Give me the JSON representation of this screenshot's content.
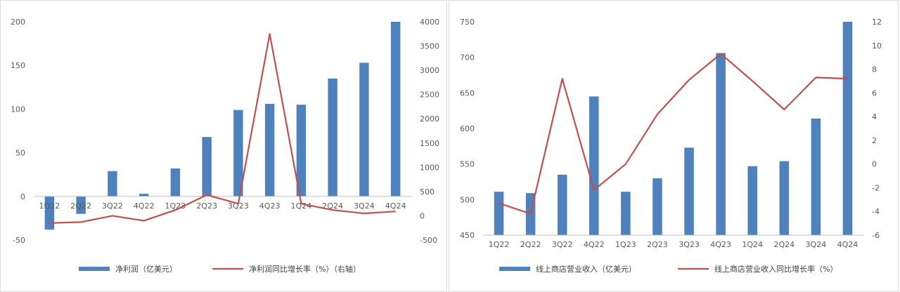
{
  "chart_data": [
    {
      "type": "bar+line",
      "categories": [
        "1Q22",
        "2Q22",
        "3Q22",
        "4Q22",
        "1Q23",
        "2Q23",
        "3Q23",
        "4Q23",
        "1Q24",
        "2Q24",
        "3Q24",
        "4Q24"
      ],
      "series": [
        {
          "name": "净利润（亿美元）",
          "kind": "bar",
          "axis": "left",
          "values": [
            -38,
            -20,
            29,
            3,
            32,
            68,
            99,
            106,
            105,
            135,
            153,
            200
          ]
        },
        {
          "name": "净利润同比增长率（%）（右轴）",
          "kind": "line",
          "axis": "right",
          "values": [
            -150,
            -130,
            0,
            -100,
            120,
            430,
            250,
            3750,
            250,
            120,
            50,
            90
          ]
        }
      ],
      "left_ylim": [
        -50,
        200
      ],
      "left_ticks": [
        -50,
        0,
        50,
        100,
        150,
        200
      ],
      "right_ylim": [
        -500,
        4000
      ],
      "right_ticks": [
        -500,
        0,
        500,
        1000,
        1500,
        2000,
        2500,
        3000,
        3500,
        4000
      ],
      "colors": {
        "bar": "#4f81bd",
        "line": "#c0504d"
      },
      "legend": "bottom",
      "grid": false
    },
    {
      "type": "bar+line",
      "categories": [
        "1Q22",
        "2Q22",
        "3Q22",
        "4Q22",
        "1Q23",
        "2Q23",
        "3Q23",
        "4Q23",
        "1Q24",
        "2Q24",
        "3Q24",
        "4Q24"
      ],
      "series": [
        {
          "name": "线上商店营业收入（亿美元）",
          "kind": "bar",
          "axis": "left",
          "values": [
            511,
            509,
            535,
            645,
            511,
            530,
            573,
            706,
            547,
            554,
            614,
            750
          ]
        },
        {
          "name": "线上商店营业收入同比增长率（%）",
          "kind": "line",
          "axis": "right",
          "values": [
            -3.3,
            -4.2,
            7.2,
            -2.2,
            0,
            4.2,
            7.1,
            9.3,
            7.0,
            4.6,
            7.3,
            7.2
          ]
        }
      ],
      "left_ylim": [
        450,
        750
      ],
      "left_ticks": [
        450,
        500,
        550,
        600,
        650,
        700,
        750
      ],
      "right_ylim": [
        -6,
        12
      ],
      "right_ticks": [
        -6,
        -4,
        -2,
        0,
        2,
        4,
        6,
        8,
        10,
        12
      ],
      "colors": {
        "bar": "#4f81bd",
        "line": "#c0504d"
      },
      "legend": "bottom",
      "grid": false
    }
  ]
}
